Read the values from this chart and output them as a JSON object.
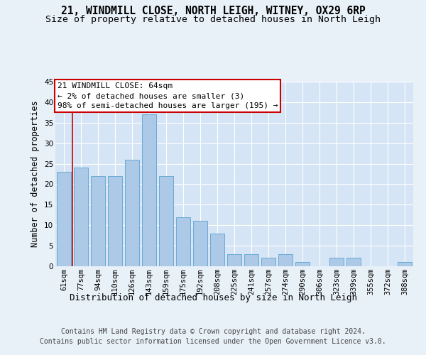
{
  "title": "21, WINDMILL CLOSE, NORTH LEIGH, WITNEY, OX29 6RP",
  "subtitle": "Size of property relative to detached houses in North Leigh",
  "xlabel": "Distribution of detached houses by size in North Leigh",
  "ylabel": "Number of detached properties",
  "categories": [
    "61sqm",
    "77sqm",
    "94sqm",
    "110sqm",
    "126sqm",
    "143sqm",
    "159sqm",
    "175sqm",
    "192sqm",
    "208sqm",
    "225sqm",
    "241sqm",
    "257sqm",
    "274sqm",
    "290sqm",
    "306sqm",
    "323sqm",
    "339sqm",
    "355sqm",
    "372sqm",
    "388sqm"
  ],
  "values": [
    23,
    24,
    22,
    22,
    26,
    37,
    22,
    12,
    11,
    8,
    3,
    3,
    2,
    3,
    1,
    0,
    2,
    2,
    0,
    0,
    1
  ],
  "bar_color": "#adc9e8",
  "bar_edge_color": "#6aaad4",
  "annotation_text": "21 WINDMILL CLOSE: 64sqm\n← 2% of detached houses are smaller (3)\n98% of semi-detached houses are larger (195) →",
  "annotation_box_color": "#ffffff",
  "annotation_box_edge": "#cc0000",
  "ylim": [
    0,
    45
  ],
  "yticks": [
    0,
    5,
    10,
    15,
    20,
    25,
    30,
    35,
    40,
    45
  ],
  "bg_color": "#e8f0f8",
  "plot_bg_color": "#d5e5f5",
  "grid_color": "#ffffff",
  "footer1": "Contains HM Land Registry data © Crown copyright and database right 2024.",
  "footer2": "Contains public sector information licensed under the Open Government Licence v3.0.",
  "title_fontsize": 10.5,
  "subtitle_fontsize": 9.5,
  "xlabel_fontsize": 9,
  "ylabel_fontsize": 8.5,
  "tick_fontsize": 7.5,
  "annotation_fontsize": 8,
  "footer_fontsize": 7
}
